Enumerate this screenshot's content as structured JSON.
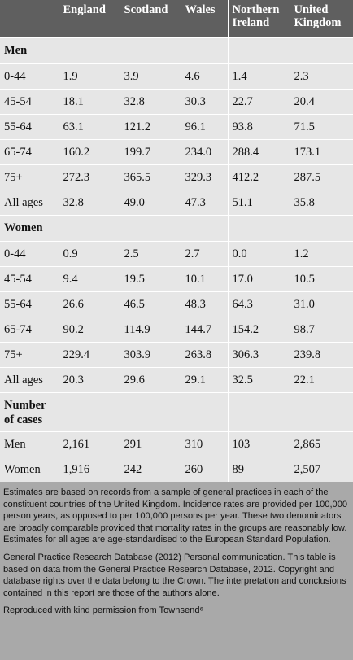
{
  "table": {
    "headers": [
      "",
      "England",
      "Scotland",
      "Wales",
      "Northern Ireland",
      "United Kingdom"
    ],
    "sections": [
      {
        "title": "Men",
        "rows": [
          [
            "0-44",
            "1.9",
            "3.9",
            "4.6",
            "1.4",
            "2.3"
          ],
          [
            "45-54",
            "18.1",
            "32.8",
            "30.3",
            "22.7",
            "20.4"
          ],
          [
            "55-64",
            "63.1",
            "121.2",
            "96.1",
            "93.8",
            "71.5"
          ],
          [
            "65-74",
            "160.2",
            "199.7",
            "234.0",
            "288.4",
            "173.1"
          ],
          [
            "75+",
            "272.3",
            "365.5",
            "329.3",
            "412.2",
            "287.5"
          ],
          [
            "All ages",
            "32.8",
            "49.0",
            "47.3",
            "51.1",
            "35.8"
          ]
        ]
      },
      {
        "title": "Women",
        "rows": [
          [
            "0-44",
            "0.9",
            "2.5",
            "2.7",
            "0.0",
            "1.2"
          ],
          [
            "45-54",
            "9.4",
            "19.5",
            "10.1",
            "17.0",
            "10.5"
          ],
          [
            "55-64",
            "26.6",
            "46.5",
            "48.3",
            "64.3",
            "31.0"
          ],
          [
            "65-74",
            "90.2",
            "114.9",
            "144.7",
            "154.2",
            "98.7"
          ],
          [
            "75+",
            "229.4",
            "303.9",
            "263.8",
            "306.3",
            "239.8"
          ],
          [
            "All ages",
            "20.3",
            "29.6",
            "29.1",
            "32.5",
            "22.1"
          ]
        ]
      },
      {
        "title": "Number of cases",
        "rows": [
          [
            "Men",
            "2,161",
            "291",
            "310",
            "103",
            "2,865"
          ],
          [
            "Women",
            "1,916",
            "242",
            "260",
            "89",
            "2,507"
          ]
        ]
      }
    ]
  },
  "notes": {
    "estimates": "Estimates are based on records from a sample of general practices in each of the constituent countries of the United Kingdom. Incidence rates are provided per 100,000 person years, as opposed to per 100,000 persons per year. These two denominators are broadly comparable provided that mortality rates in the groups are reasonably low. Estimates for all ages are age-standardised to the European Standard Population.",
    "source": "General Practice Research Database (2012) Personal communication. This table is based on data from the General Practice Research Database, 2012. Copyright and database rights over the data belong to the Crown. The interpretation and conclusions contained in this report are those of the authors alone.",
    "credit": "Reproduced with kind permission from Townsend⁶"
  }
}
